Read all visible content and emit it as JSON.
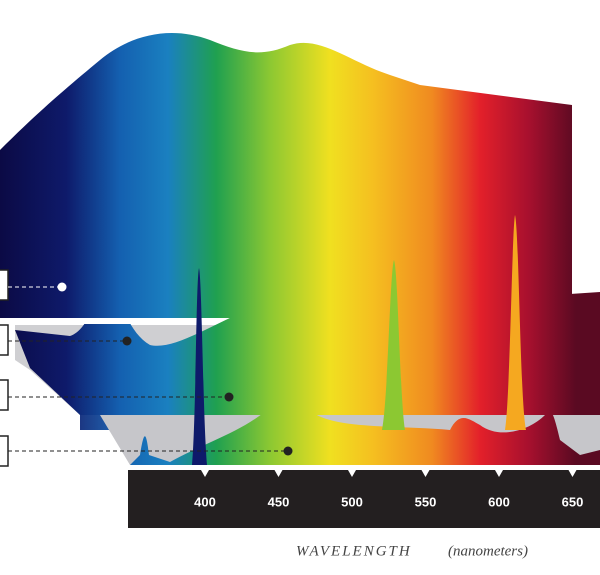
{
  "axis": {
    "ticks": [
      400,
      450,
      500,
      550,
      600,
      650
    ],
    "label_main": "WAVELENGTH",
    "label_unit": "(nanometers)"
  }
}
